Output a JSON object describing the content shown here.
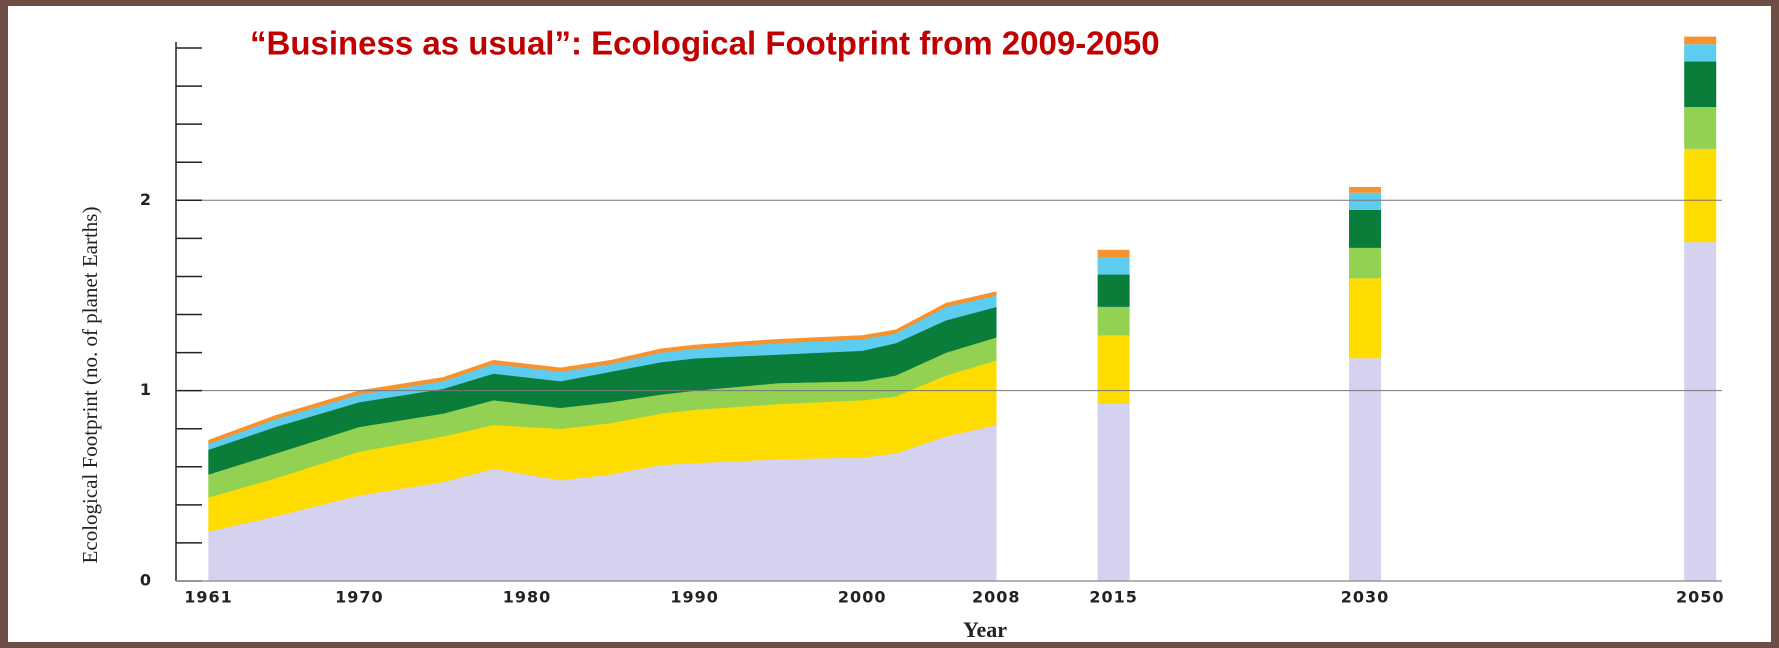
{
  "chart_data": [
    {
      "type": "area",
      "title": "“Business as usual”: Ecological Footprint from 2009-2050",
      "ylabel": "Ecological Footprint (no. of planet Earths)",
      "xlabel": "Year",
      "x": [
        1961,
        1965,
        1970,
        1975,
        1978,
        1982,
        1985,
        1988,
        1990,
        1995,
        2000,
        2002,
        2005,
        2008
      ],
      "series": [
        {
          "color": "#d4d2ef",
          "values": [
            0.26,
            0.34,
            0.45,
            0.52,
            0.59,
            0.53,
            0.56,
            0.61,
            0.62,
            0.64,
            0.65,
            0.67,
            0.76,
            0.82
          ]
        },
        {
          "color": "#ffdc00",
          "values": [
            0.18,
            0.2,
            0.23,
            0.24,
            0.23,
            0.27,
            0.27,
            0.27,
            0.28,
            0.29,
            0.3,
            0.3,
            0.32,
            0.34
          ]
        },
        {
          "color": "#93d152",
          "values": [
            0.12,
            0.13,
            0.13,
            0.12,
            0.13,
            0.11,
            0.11,
            0.1,
            0.1,
            0.11,
            0.1,
            0.11,
            0.12,
            0.12
          ]
        },
        {
          "color": "#0b7d3a",
          "values": [
            0.13,
            0.14,
            0.13,
            0.13,
            0.14,
            0.14,
            0.16,
            0.17,
            0.17,
            0.15,
            0.16,
            0.17,
            0.17,
            0.16
          ]
        },
        {
          "color": "#5ccdf0",
          "values": [
            0.03,
            0.04,
            0.04,
            0.04,
            0.05,
            0.05,
            0.04,
            0.05,
            0.05,
            0.06,
            0.06,
            0.05,
            0.07,
            0.06
          ]
        },
        {
          "color": "#f7932e",
          "values": [
            0.02,
            0.02,
            0.02,
            0.02,
            0.02,
            0.02,
            0.02,
            0.02,
            0.02,
            0.02,
            0.02,
            0.02,
            0.02,
            0.02
          ]
        }
      ],
      "xlim": [
        1958.7,
        2051.3
      ],
      "xticks": [
        1961,
        1970,
        1980,
        1990,
        2000,
        2008,
        2015,
        2030,
        2050
      ],
      "ylim": [
        0,
        2.9
      ],
      "yticks": [
        0,
        1,
        2
      ],
      "minor_yticks": [
        0.2,
        0.4,
        0.6,
        0.8,
        1.2,
        1.4,
        1.6,
        1.8,
        2.2,
        2.4,
        2.6,
        2.8
      ],
      "grid": true
    },
    {
      "type": "bar",
      "x": [
        2015,
        2030,
        2050
      ],
      "series": [
        {
          "color": "#d4d2ef",
          "values": [
            0.93,
            1.17,
            1.78
          ]
        },
        {
          "color": "#ffdc00",
          "values": [
            0.36,
            0.42,
            0.49
          ]
        },
        {
          "color": "#93d152",
          "values": [
            0.15,
            0.16,
            0.22
          ]
        },
        {
          "color": "#0b7d3a",
          "values": [
            0.17,
            0.2,
            0.24
          ]
        },
        {
          "color": "#5ccdf0",
          "values": [
            0.09,
            0.09,
            0.09
          ]
        },
        {
          "color": "#f7932e",
          "values": [
            0.04,
            0.03,
            0.04
          ]
        }
      ]
    }
  ]
}
